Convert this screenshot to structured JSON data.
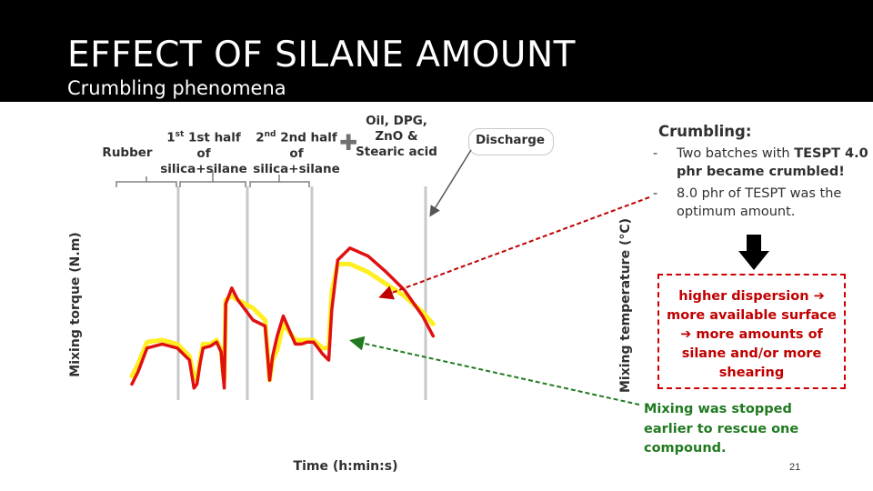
{
  "slide": {
    "title": "EFFECT OF SILANE AMOUNT",
    "subtitle": "Crumbling phenomena",
    "page_number": "21"
  },
  "phases": [
    {
      "line1": "Rubber",
      "line2": ""
    },
    {
      "line1": "1st half of",
      "line2": "silica+silane"
    },
    {
      "line1": "2nd half of",
      "line2": "silica+silane"
    },
    {
      "line1": "Oil, DPG,",
      "line2": "ZnO &",
      "line3": "Stearic acid"
    }
  ],
  "phase_sup": {
    "first": "st",
    "second": "nd"
  },
  "discharge_label": "Discharge",
  "crumbling": {
    "title": "Crumbling:",
    "items": [
      {
        "dash": "-",
        "text_pre": "Two batches with ",
        "text_bold": "TESPT 4.0 phr became crumbled!"
      },
      {
        "dash": "-",
        "text": "8.0 phr of TESPT was the optimum amount."
      }
    ]
  },
  "result": {
    "lines": [
      "higher dispersion ➔",
      "more available surface",
      "➔ more amounts of",
      "silane and/or more",
      "shearing"
    ]
  },
  "note": {
    "lines": [
      "Mixing was stopped",
      "earlier to rescue one",
      "compound."
    ]
  },
  "colors": {
    "header_bg": "#000000",
    "series_red": "#e01010",
    "series_yellow": "#ffee20",
    "result_text": "#c00000",
    "note_text": "#207a20",
    "arrow_down": "#000000"
  },
  "chart_data": {
    "type": "line",
    "title": "",
    "xlabel": "Time (h:min:s)",
    "ylabel_left": "Mixing torque (N.m)",
    "ylabel_right": "Mixing temperature (°C)",
    "grid": false,
    "x_ticks_printed": false,
    "y_ticks_printed": false,
    "series": [
      {
        "color": "#ffee20",
        "x": [
          0.0,
          0.02,
          0.05,
          0.1,
          0.15,
          0.19,
          0.205,
          0.215,
          0.225,
          0.235,
          0.26,
          0.28,
          0.295,
          0.3,
          0.305,
          0.31,
          0.33,
          0.35,
          0.4,
          0.44,
          0.455,
          0.465,
          0.48,
          0.5,
          0.54,
          0.56,
          0.58,
          0.6,
          0.63,
          0.65,
          0.66,
          0.68,
          0.72,
          0.78,
          0.84,
          0.9,
          0.96,
          0.995
        ],
        "y": [
          0.12,
          0.18,
          0.29,
          0.3,
          0.28,
          0.22,
          0.12,
          0.1,
          0.2,
          0.28,
          0.28,
          0.3,
          0.25,
          0.15,
          0.1,
          0.5,
          0.52,
          0.5,
          0.46,
          0.4,
          0.1,
          0.2,
          0.25,
          0.38,
          0.3,
          0.3,
          0.3,
          0.3,
          0.26,
          0.26,
          0.54,
          0.68,
          0.68,
          0.64,
          0.58,
          0.52,
          0.44,
          0.38
        ]
      },
      {
        "color": "#e01010",
        "x": [
          0.0,
          0.02,
          0.05,
          0.1,
          0.15,
          0.19,
          0.205,
          0.215,
          0.225,
          0.235,
          0.26,
          0.28,
          0.295,
          0.3,
          0.305,
          0.31,
          0.33,
          0.35,
          0.4,
          0.44,
          0.455,
          0.465,
          0.48,
          0.5,
          0.54,
          0.56,
          0.58,
          0.6,
          0.63,
          0.65,
          0.66,
          0.68,
          0.72,
          0.78,
          0.84,
          0.9,
          0.96,
          0.995
        ],
        "y": [
          0.08,
          0.14,
          0.26,
          0.28,
          0.26,
          0.2,
          0.06,
          0.08,
          0.18,
          0.26,
          0.27,
          0.29,
          0.24,
          0.14,
          0.06,
          0.48,
          0.56,
          0.5,
          0.4,
          0.37,
          0.1,
          0.22,
          0.32,
          0.42,
          0.28,
          0.28,
          0.29,
          0.29,
          0.23,
          0.2,
          0.45,
          0.7,
          0.76,
          0.72,
          0.64,
          0.55,
          0.42,
          0.32
        ]
      }
    ]
  }
}
